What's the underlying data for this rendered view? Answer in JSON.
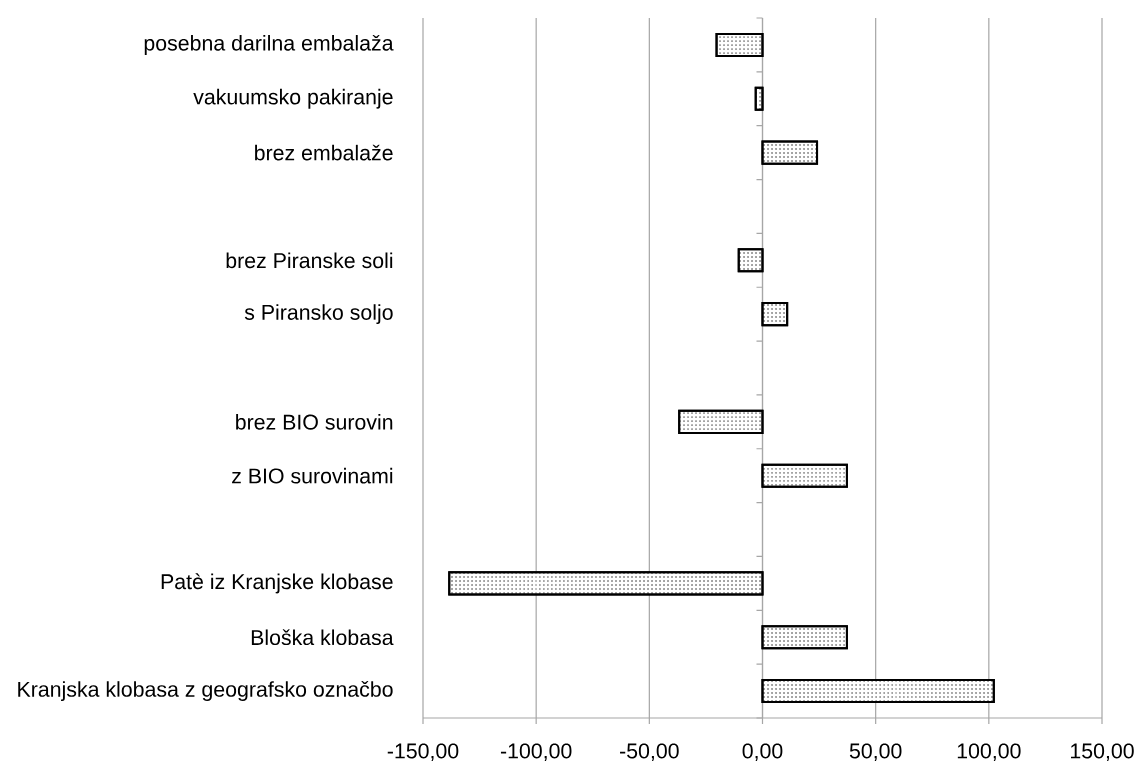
{
  "chart_data": {
    "type": "bar",
    "orientation": "horizontal",
    "categories": [
      "posebna darilna embalaža",
      "vakuumsko pakiranje",
      "brez embalaže",
      null,
      "brez Piranske soli",
      "s Piransko soljo",
      null,
      "brez BIO surovin",
      "z BIO surovinami",
      null,
      "Patè iz Kranjske klobase",
      "Bloška klobasa",
      "Kranjska klobasa z geografsko označbo"
    ],
    "values": [
      -20.3,
      -3,
      24.1,
      null,
      -10.5,
      10.9,
      null,
      -36.8,
      37.3,
      null,
      -138.4,
      37.3,
      102.2
    ],
    "color": "#000000",
    "xlim": [
      -150,
      150
    ],
    "xticks": [
      {
        "value": -150,
        "label": "-150,00"
      },
      {
        "value": -100,
        "label": "-100,00"
      },
      {
        "value": -50,
        "label": "-50,00"
      },
      {
        "value": 0,
        "label": "0,00"
      },
      {
        "value": 50,
        "label": "50,00"
      },
      {
        "value": 100,
        "label": "100,00"
      },
      {
        "value": 150,
        "label": "150,00"
      }
    ],
    "grid": "x"
  }
}
